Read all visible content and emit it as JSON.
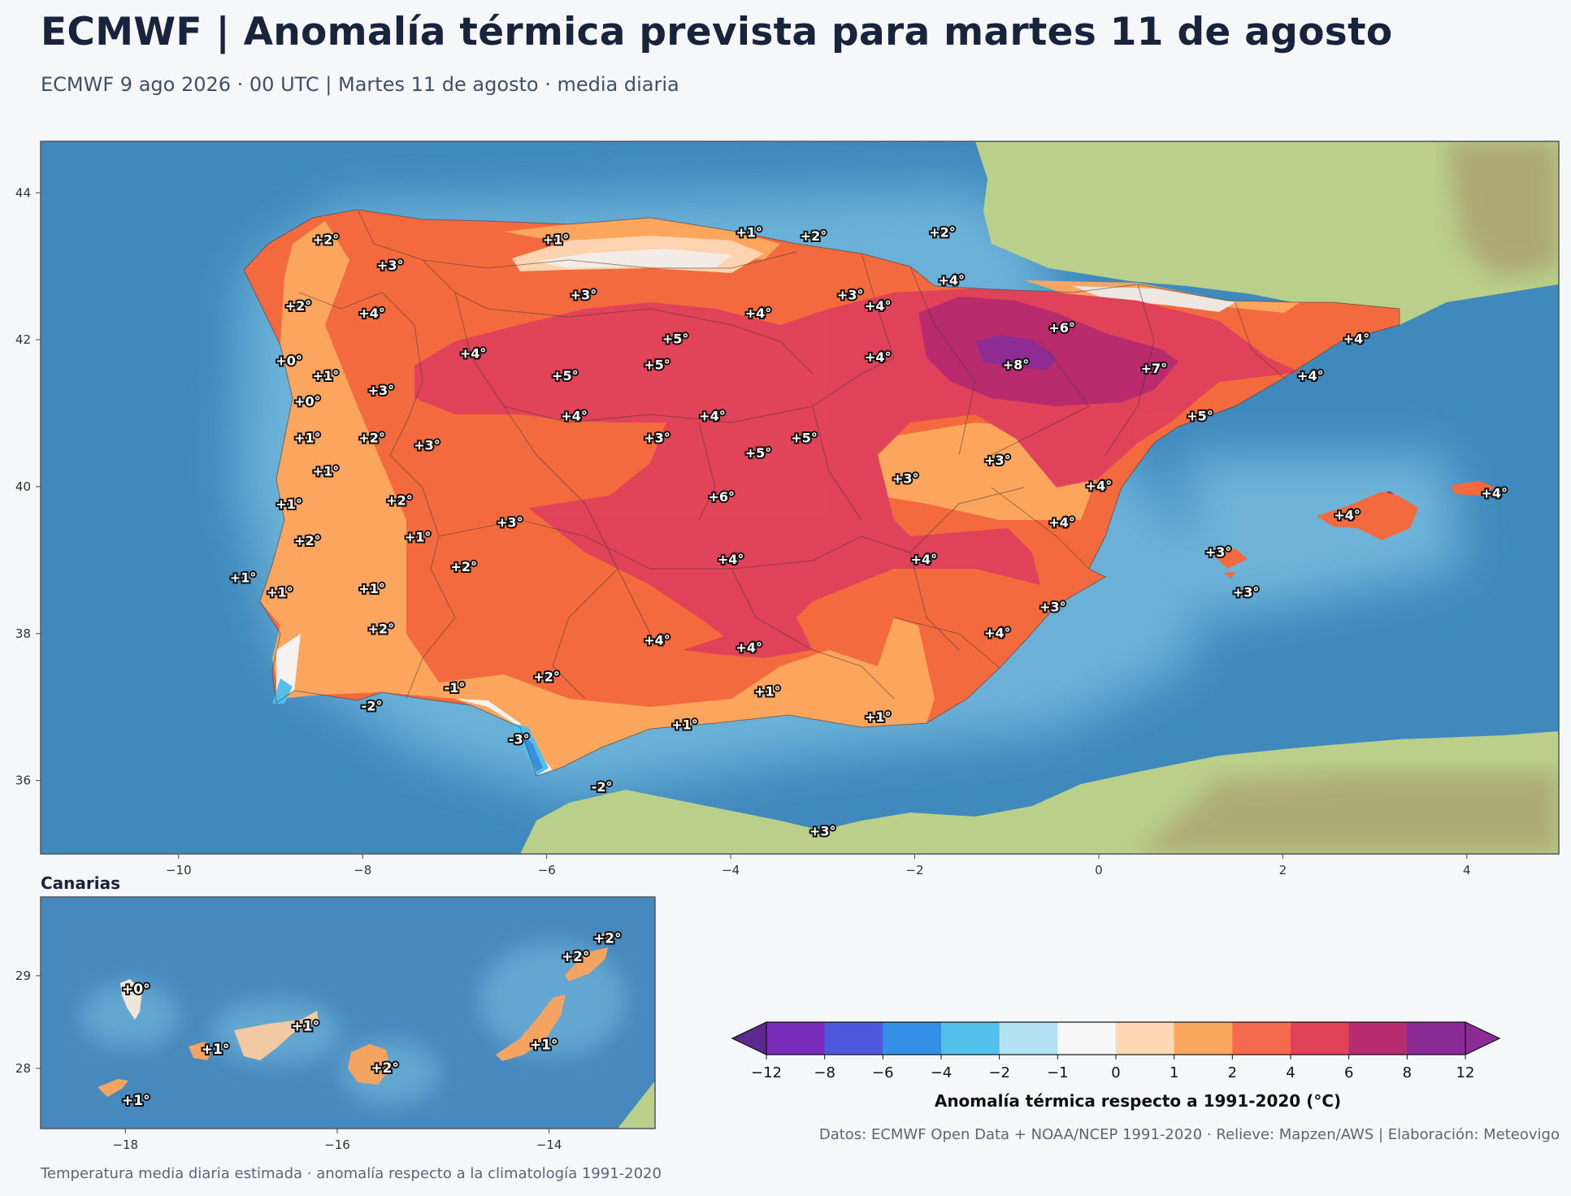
{
  "title": "ECMWF | Anomalía térmica prevista para martes 11 de agosto",
  "subtitle": "ECMWF 9 ago 2026 · 00 UTC  |  Martes 11 de agosto · media diaria",
  "main_map": {
    "lon_range": [
      -11.5,
      5.0
    ],
    "lat_range": [
      35.0,
      44.7
    ],
    "x_ticks": [
      "−10",
      "−8",
      "−6",
      "−4",
      "−2",
      "0",
      "2",
      "4"
    ],
    "y_ticks": [
      "36",
      "38",
      "40",
      "42",
      "44"
    ],
    "labels": [
      {
        "text": "+2°",
        "lon": -8.4,
        "lat": 43.35
      },
      {
        "text": "+1°",
        "lon": -5.9,
        "lat": 43.35
      },
      {
        "text": "+1°",
        "lon": -3.8,
        "lat": 43.45
      },
      {
        "text": "+2°",
        "lon": -3.1,
        "lat": 43.4
      },
      {
        "text": "+2°",
        "lon": -1.7,
        "lat": 43.45
      },
      {
        "text": "+3°",
        "lon": -7.7,
        "lat": 43.0
      },
      {
        "text": "+3°",
        "lon": -5.6,
        "lat": 42.6
      },
      {
        "text": "+4°",
        "lon": -1.6,
        "lat": 42.8
      },
      {
        "text": "+3°",
        "lon": -2.7,
        "lat": 42.6
      },
      {
        "text": "+4°",
        "lon": -2.4,
        "lat": 42.45
      },
      {
        "text": "+2°",
        "lon": -8.7,
        "lat": 42.45
      },
      {
        "text": "+4°",
        "lon": -7.9,
        "lat": 42.35
      },
      {
        "text": "+4°",
        "lon": -3.7,
        "lat": 42.35
      },
      {
        "text": "+6°",
        "lon": -0.4,
        "lat": 42.15
      },
      {
        "text": "+4°",
        "lon": 2.8,
        "lat": 42.0
      },
      {
        "text": "+5°",
        "lon": -4.6,
        "lat": 42.0
      },
      {
        "text": "+4°",
        "lon": -6.8,
        "lat": 41.8
      },
      {
        "text": "+4°",
        "lon": -2.4,
        "lat": 41.75
      },
      {
        "text": "+0°",
        "lon": -8.8,
        "lat": 41.7
      },
      {
        "text": "+5°",
        "lon": -4.8,
        "lat": 41.65
      },
      {
        "text": "+8°",
        "lon": -0.9,
        "lat": 41.65
      },
      {
        "text": "+7°",
        "lon": 0.6,
        "lat": 41.6
      },
      {
        "text": "+1°",
        "lon": -8.4,
        "lat": 41.5
      },
      {
        "text": "+5°",
        "lon": -5.8,
        "lat": 41.5
      },
      {
        "text": "+4°",
        "lon": 2.3,
        "lat": 41.5
      },
      {
        "text": "+3°",
        "lon": -7.8,
        "lat": 41.3
      },
      {
        "text": "+0°",
        "lon": -8.6,
        "lat": 41.15
      },
      {
        "text": "+4°",
        "lon": -5.7,
        "lat": 40.95
      },
      {
        "text": "+4°",
        "lon": -4.2,
        "lat": 40.95
      },
      {
        "text": "+5°",
        "lon": 1.1,
        "lat": 40.95
      },
      {
        "text": "+1°",
        "lon": -8.6,
        "lat": 40.65
      },
      {
        "text": "+2°",
        "lon": -7.9,
        "lat": 40.65
      },
      {
        "text": "+3°",
        "lon": -4.8,
        "lat": 40.65
      },
      {
        "text": "+5°",
        "lon": -3.2,
        "lat": 40.65
      },
      {
        "text": "+3°",
        "lon": -7.3,
        "lat": 40.55
      },
      {
        "text": "+5°",
        "lon": -3.7,
        "lat": 40.45
      },
      {
        "text": "+3°",
        "lon": -1.1,
        "lat": 40.35
      },
      {
        "text": "+1°",
        "lon": -8.4,
        "lat": 40.2
      },
      {
        "text": "+3°",
        "lon": -2.1,
        "lat": 40.1
      },
      {
        "text": "+4°",
        "lon": -0.0,
        "lat": 40.0
      },
      {
        "text": "+6°",
        "lon": -4.1,
        "lat": 39.85
      },
      {
        "text": "+4°",
        "lon": 4.3,
        "lat": 39.9
      },
      {
        "text": "+2°",
        "lon": -7.6,
        "lat": 39.8
      },
      {
        "text": "+1°",
        "lon": -8.8,
        "lat": 39.75
      },
      {
        "text": "+4°",
        "lon": 2.7,
        "lat": 39.6
      },
      {
        "text": "+3°",
        "lon": -6.4,
        "lat": 39.5
      },
      {
        "text": "+4°",
        "lon": -0.4,
        "lat": 39.5
      },
      {
        "text": "+1°",
        "lon": -7.4,
        "lat": 39.3
      },
      {
        "text": "+2°",
        "lon": -8.6,
        "lat": 39.25
      },
      {
        "text": "+3°",
        "lon": 1.3,
        "lat": 39.1
      },
      {
        "text": "+4°",
        "lon": -4.0,
        "lat": 39.0
      },
      {
        "text": "+4°",
        "lon": -1.9,
        "lat": 39.0
      },
      {
        "text": "+2°",
        "lon": -6.9,
        "lat": 38.9
      },
      {
        "text": "+1°",
        "lon": -9.3,
        "lat": 38.75
      },
      {
        "text": "+1°",
        "lon": -7.9,
        "lat": 38.6
      },
      {
        "text": "+1°",
        "lon": -8.9,
        "lat": 38.55
      },
      {
        "text": "+3°",
        "lon": 1.6,
        "lat": 38.55
      },
      {
        "text": "+3°",
        "lon": -0.5,
        "lat": 38.35
      },
      {
        "text": "+2°",
        "lon": -7.8,
        "lat": 38.05
      },
      {
        "text": "+4°",
        "lon": -1.1,
        "lat": 38.0
      },
      {
        "text": "+4°",
        "lon": -4.8,
        "lat": 37.9
      },
      {
        "text": "+4°",
        "lon": -3.8,
        "lat": 37.8
      },
      {
        "text": "+2°",
        "lon": -6.0,
        "lat": 37.4
      },
      {
        "text": "-1°",
        "lon": -7.0,
        "lat": 37.25
      },
      {
        "text": "+1°",
        "lon": -3.6,
        "lat": 37.2
      },
      {
        "text": "-2°",
        "lon": -7.9,
        "lat": 37.0
      },
      {
        "text": "+1°",
        "lon": -2.4,
        "lat": 36.85
      },
      {
        "text": "+1°",
        "lon": -4.5,
        "lat": 36.75
      },
      {
        "text": "-3°",
        "lon": -6.3,
        "lat": 36.55
      },
      {
        "text": "-2°",
        "lon": -5.4,
        "lat": 35.9
      },
      {
        "text": "+3°",
        "lon": -3.0,
        "lat": 35.3
      }
    ]
  },
  "inset_map": {
    "title": "Canarias",
    "lon_range": [
      -18.8,
      -13.0
    ],
    "lat_range": [
      27.35,
      29.85
    ],
    "x_ticks": [
      "−18",
      "−16",
      "−14"
    ],
    "y_ticks": [
      "28",
      "29"
    ],
    "labels": [
      {
        "text": "+0°",
        "lon": -17.9,
        "lat": 28.85
      },
      {
        "text": "+1°",
        "lon": -17.15,
        "lat": 28.2
      },
      {
        "text": "+1°",
        "lon": -16.3,
        "lat": 28.45
      },
      {
        "text": "+2°",
        "lon": -15.55,
        "lat": 28.0
      },
      {
        "text": "+1°",
        "lon": -14.05,
        "lat": 28.25
      },
      {
        "text": "+2°",
        "lon": -13.75,
        "lat": 29.2
      },
      {
        "text": "+2°",
        "lon": -13.45,
        "lat": 29.4
      },
      {
        "text": "+1°",
        "lon": -17.9,
        "lat": 27.65
      }
    ]
  },
  "colorbar": {
    "label": "Anomalía térmica respecto a 1991-2020 (°C)",
    "bounds": [
      -12,
      -8,
      -6,
      -4,
      -2,
      -1,
      0,
      1,
      2,
      4,
      6,
      8,
      12
    ],
    "tick_labels": [
      "−12",
      "−8",
      "−6",
      "−4",
      "−2",
      "−1",
      "0",
      "1",
      "2",
      "4",
      "6",
      "8",
      "12"
    ],
    "colors": [
      "#5b2a8c",
      "#7a2dbb",
      "#4f58dd",
      "#3490e6",
      "#53c1ec",
      "#b3e3f2",
      "#f7f7f7",
      "#fed7b4",
      "#fca75f",
      "#f56b4d",
      "#e0425a",
      "#b72b70",
      "#8a2b96"
    ],
    "under_color": "#5b2a8c",
    "over_color": "#8a2b96"
  },
  "credits": "Datos: ECMWF Open Data + NOAA/NCEP 1991-2020 · Relieve: Mapzen/AWS  |  Elaboración: Meteovigo",
  "footer": "Temperatura media diaria estimada · anomalía respecto a la climatología 1991-2020"
}
